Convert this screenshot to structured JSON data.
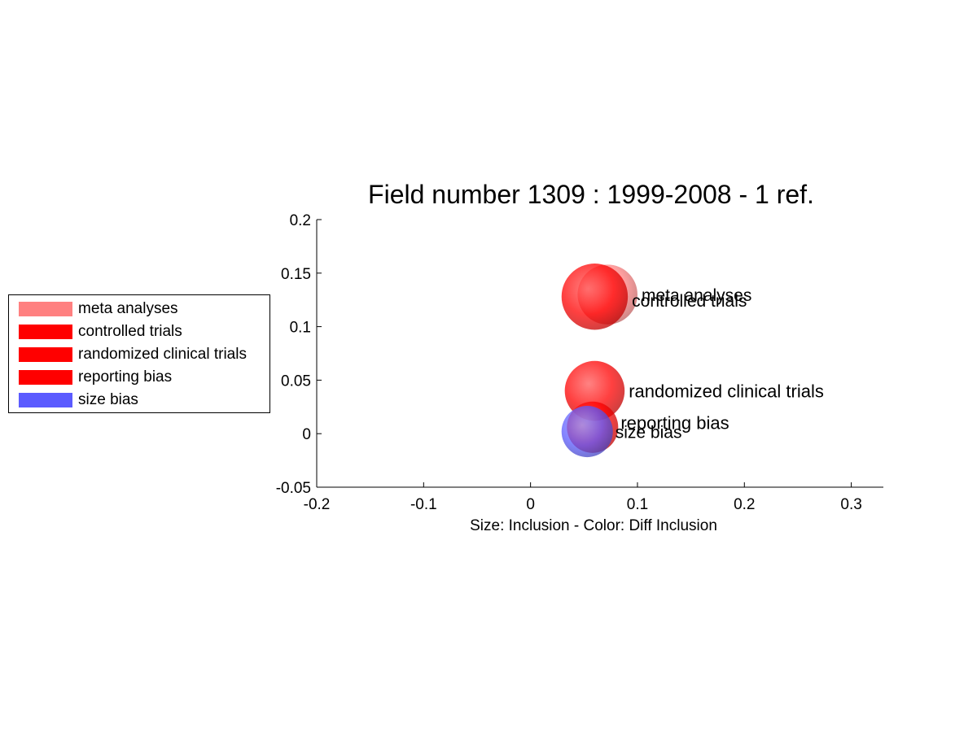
{
  "chart_data": {
    "type": "scatter",
    "title": "Field number 1309 : 1999-2008  - 1 ref.",
    "xlabel": "Size: Inclusion - Color: Diff Inclusion",
    "ylabel": "",
    "xlim": [
      -0.2,
      0.33
    ],
    "ylim": [
      -0.05,
      0.2
    ],
    "xticks": [
      "-0.2",
      "-0.1",
      "0",
      "0.1",
      "0.2",
      "0.3"
    ],
    "yticks": [
      "-0.05",
      "0",
      "0.05",
      "0.1",
      "0.15",
      "0.2"
    ],
    "grid": false,
    "legend_position": "left",
    "series": [
      {
        "name": "meta analyses",
        "x": 0.072,
        "y": 0.13,
        "radius": 0.028,
        "color": "#ff8080"
      },
      {
        "name": "controlled trials",
        "x": 0.06,
        "y": 0.128,
        "radius": 0.031,
        "color": "#ff0000"
      },
      {
        "name": "randomized clinical trials",
        "x": 0.06,
        "y": 0.04,
        "radius": 0.028,
        "color": "#ff0000"
      },
      {
        "name": "reporting bias",
        "x": 0.058,
        "y": 0.006,
        "radius": 0.024,
        "color": "#ff0000"
      },
      {
        "name": "size bias",
        "x": 0.053,
        "y": 0.002,
        "radius": 0.024,
        "color": "#5b5bff"
      }
    ]
  }
}
